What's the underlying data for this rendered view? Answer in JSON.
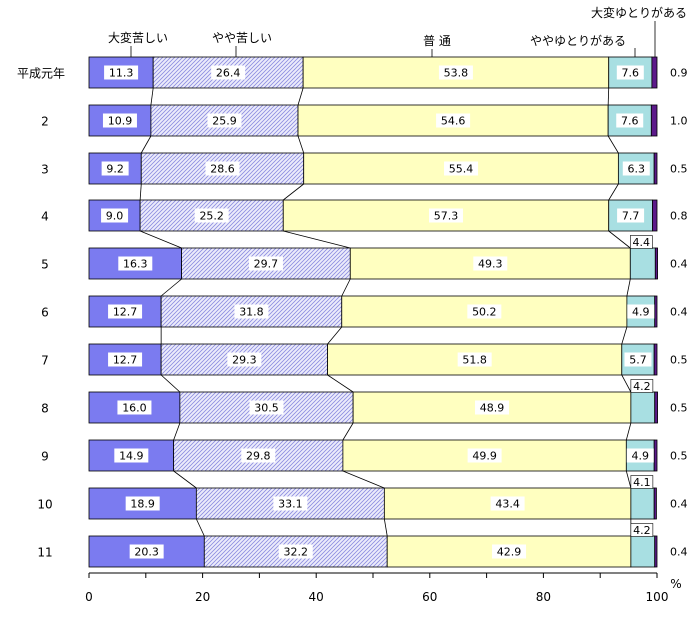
{
  "chart_data": {
    "type": "bar",
    "stacked": true,
    "orientation": "horizontal",
    "categories": [
      "平成元年",
      "2",
      "3",
      "4",
      "5",
      "6",
      "7",
      "8",
      "9",
      "10",
      "11"
    ],
    "series": [
      {
        "name": "大変苦しい",
        "color": "#7b7bf0",
        "values": [
          11.3,
          10.9,
          9.2,
          9.0,
          16.3,
          12.7,
          12.7,
          16.0,
          14.9,
          18.9,
          20.3
        ],
        "labels": [
          "11.3",
          "10.9",
          "9.2",
          "9.0",
          "16.3",
          "12.7",
          "12.7",
          "16.0",
          "14.9",
          "18.9",
          "20.3"
        ]
      },
      {
        "name": "やや苦しい",
        "color": "#c9c9f2",
        "values": [
          26.4,
          25.9,
          28.6,
          25.2,
          29.7,
          31.8,
          29.3,
          30.5,
          29.8,
          33.1,
          32.2
        ],
        "labels": [
          "26.4",
          "25.9",
          "28.6",
          "25.2",
          "29.7",
          "31.8",
          "29.3",
          "30.5",
          "29.8",
          "33.1",
          "32.2"
        ]
      },
      {
        "name": "普 通",
        "color": "#ffffc0",
        "values": [
          53.8,
          54.6,
          55.4,
          57.3,
          49.3,
          50.2,
          51.8,
          48.9,
          49.9,
          43.4,
          42.9
        ],
        "labels": [
          "53.8",
          "54.6",
          "55.4",
          "57.3",
          "49.3",
          "50.2",
          "51.8",
          "48.9",
          "49.9",
          "43.4",
          "42.9"
        ]
      },
      {
        "name": "ややゆとりがある",
        "color": "#a8dfe2",
        "values": [
          7.6,
          7.6,
          6.3,
          7.7,
          4.4,
          4.9,
          5.7,
          4.2,
          4.9,
          4.1,
          4.2
        ],
        "labels": [
          "7.6",
          "7.6",
          "6.3",
          "7.7",
          "4.4",
          "4.9",
          "5.7",
          "4.2",
          "4.9",
          "4.1",
          "4.2"
        ]
      },
      {
        "name": "大変ゆとりがある",
        "color": "#5c1a8a",
        "values": [
          0.9,
          1.0,
          0.5,
          0.8,
          0.4,
          0.4,
          0.5,
          0.5,
          0.5,
          0.4,
          0.4
        ],
        "labels": [
          "0.9",
          "1.0",
          "0.5",
          "0.8",
          "0.4",
          "0.4",
          "0.5",
          "0.5",
          "0.5",
          "0.4",
          "0.4"
        ]
      }
    ],
    "xlim": [
      0,
      100
    ],
    "xticks": [
      "0",
      "20",
      "40",
      "60",
      "80",
      "100"
    ],
    "xunit": "%",
    "grid": false,
    "legend": "top"
  }
}
